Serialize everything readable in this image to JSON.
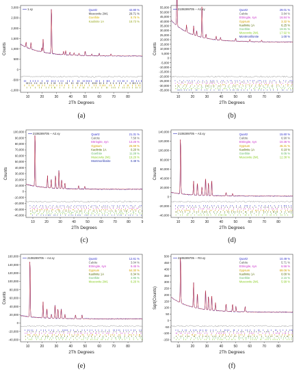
{
  "chart_data": [
    {
      "type": "line",
      "subfigure": "(a)",
      "legend_title": "1.xy",
      "ylabel": "Counts",
      "xlabel": "2Th Degrees",
      "xlim": [
        5,
        90
      ],
      "ylim": [
        -1500,
        3000
      ],
      "yticks": [
        "3,000",
        "2,500",
        "2,000",
        "1,500",
        "1,000",
        "500",
        "0",
        "-500",
        "-1,000"
      ],
      "xticks": [
        "10",
        "20",
        "30",
        "40",
        "50",
        "60",
        "70",
        "80"
      ],
      "legend": [
        {
          "name": "Quartz",
          "value": "42.80 %",
          "color": "#3333cc"
        },
        {
          "name": "Muscovite 2M1",
          "value": "29.71 %",
          "color": "#333333"
        },
        {
          "name": "Goethite",
          "value": "8.76 %",
          "color": "#d4b000"
        },
        {
          "name": "Kaolinite 1A",
          "value": "18.73 %",
          "color": "#99aa22"
        }
      ],
      "baseline": 380,
      "peaks": [
        [
          8.9,
          300
        ],
        [
          12.3,
          350
        ],
        [
          19.9,
          250
        ],
        [
          20.8,
          700
        ],
        [
          26.6,
          2600
        ],
        [
          35.0,
          180
        ],
        [
          36.5,
          220
        ],
        [
          39.5,
          150
        ],
        [
          42.4,
          150
        ],
        [
          45.8,
          120
        ],
        [
          50.1,
          250
        ],
        [
          54.8,
          100
        ],
        [
          59.9,
          140
        ],
        [
          68.1,
          120
        ]
      ],
      "stick_rows": [
        "#3333cc",
        "#333333",
        "#d4b000",
        "#99aa22"
      ]
    },
    {
      "type": "line",
      "subfigure": "(b)",
      "legend_title": "2108289705 -- A1.xy",
      "ylabel": "Counts",
      "xlabel": "2Th Degrees",
      "xlim": [
        5,
        90
      ],
      "ylim": [
        -40000,
        55000
      ],
      "yticks": [
        "55,000",
        "50,000",
        "45,000",
        "40,000",
        "35,000",
        "30,000",
        "25,000",
        "20,000",
        "15,000",
        "10,000",
        "5,000",
        "0",
        "-5,000",
        "-10,000",
        "-15,000",
        "-20,000",
        "-25,000",
        "-30,000",
        "-35,000"
      ],
      "xticks": [
        "10",
        "20",
        "30",
        "40",
        "50",
        "60",
        "70",
        "80"
      ],
      "legend": [
        {
          "name": "Quartz",
          "value": "29.01 %",
          "color": "#3333cc"
        },
        {
          "name": "Calcite",
          "value": "3.84 %",
          "color": "#555555"
        },
        {
          "name": "Ettringite, syn",
          "value": "16.84 %",
          "color": "#cc33cc"
        },
        {
          "name": "Gypsum",
          "value": "3.32 %",
          "color": "#d4a000"
        },
        {
          "name": "Kaolinite 1A",
          "value": "6.25 %",
          "color": "#556b00"
        },
        {
          "name": "Goethite",
          "value": "19.81 %",
          "color": "#66bb66"
        },
        {
          "name": "Muscovite 2M1",
          "value": "17.92 %",
          "color": "#88cc22"
        },
        {
          "name": "Montmorillonite",
          "value": "1.00 %",
          "color": "#2233aa"
        }
      ],
      "baseline": 15000,
      "peaks": [
        [
          9.1,
          48000
        ],
        [
          15.8,
          8000
        ],
        [
          20.8,
          10000
        ],
        [
          22.9,
          6000
        ],
        [
          26.6,
          38000
        ],
        [
          29.4,
          5000
        ],
        [
          36.5,
          4000
        ],
        [
          39.5,
          3000
        ],
        [
          50.1,
          3500
        ],
        [
          60.0,
          2500
        ],
        [
          68.2,
          2000
        ]
      ],
      "stick_rows": [
        "#3333cc",
        "#555555",
        "#cc33cc",
        "#d4a000",
        "#556b00",
        "#66bb66",
        "#88cc22",
        "#2233aa"
      ]
    },
    {
      "type": "line",
      "subfigure": "(c)",
      "legend_title": "2108289705 -- A2.xy",
      "ylabel": "Counts",
      "xlabel": "2Th Degrees",
      "xlim": [
        5,
        90
      ],
      "ylim": [
        -40000,
        100000
      ],
      "yticks": [
        "100,000",
        "90,000",
        "80,000",
        "70,000",
        "60,000",
        "50,000",
        "40,000",
        "30,000",
        "20,000",
        "10,000",
        "0",
        "-10,000",
        "-20,000",
        "-30,000",
        "-40,000"
      ],
      "xticks": [
        "10",
        "20",
        "30",
        "40",
        "50",
        "60",
        "70",
        "80",
        "9"
      ],
      "legend": [
        {
          "name": "Quartz",
          "value": "21.31 %",
          "color": "#3333cc"
        },
        {
          "name": "Calcite",
          "value": "7.58 %",
          "color": "#555555"
        },
        {
          "name": "Ettringite, syn",
          "value": "13.25 %",
          "color": "#cc33cc"
        },
        {
          "name": "Gypsum",
          "value": "26.69 %",
          "color": "#d4a000"
        },
        {
          "name": "Kaolinite 1A",
          "value": "0.20 %",
          "color": "#556b00"
        },
        {
          "name": "Goethite",
          "value": "11.28 %",
          "color": "#66bb66"
        },
        {
          "name": "Muscovite 2M1",
          "value": "19.26 %",
          "color": "#88cc22"
        },
        {
          "name": "Montmorillonite",
          "value": "0.49 %",
          "color": "#2233aa"
        }
      ],
      "baseline": 5000,
      "peaks": [
        [
          11.6,
          92000
        ],
        [
          20.7,
          20000
        ],
        [
          23.4,
          15000
        ],
        [
          26.6,
          22000
        ],
        [
          29.1,
          32000
        ],
        [
          31.1,
          15000
        ],
        [
          33.4,
          10000
        ],
        [
          43.4,
          6000
        ],
        [
          47.9,
          5000
        ]
      ],
      "stick_rows": [
        "#3333cc",
        "#555555",
        "#cc33cc",
        "#d4a000",
        "#556b00",
        "#66bb66",
        "#88cc22",
        "#2233aa"
      ]
    },
    {
      "type": "line",
      "subfigure": "(d)",
      "legend_title": "2108289705 -- A3.xy",
      "ylabel": "Counts",
      "xlabel": "2Th Degrees",
      "xlim": [
        5,
        90
      ],
      "ylim": [
        -40000,
        145000
      ],
      "yticks": [
        "140,000",
        "120,000",
        "100,000",
        "80,000",
        "60,000",
        "40,000",
        "20,000",
        "0",
        "-20,000",
        "-40,000"
      ],
      "xticks": [
        "10",
        "20",
        "30",
        "40",
        "50",
        "60",
        "70",
        "80"
      ],
      "legend": [
        {
          "name": "Quartz",
          "value": "15.60 %",
          "color": "#3333cc"
        },
        {
          "name": "Calcite",
          "value": "6.90 %",
          "color": "#555555"
        },
        {
          "name": "Ettringite, syn",
          "value": "10.36 %",
          "color": "#cc33cc"
        },
        {
          "name": "Gypsum",
          "value": "46.31 %",
          "color": "#d4a000"
        },
        {
          "name": "Kaolinite 1A",
          "value": "0.18 %",
          "color": "#556b00"
        },
        {
          "name": "Goethite",
          "value": "8.05 %",
          "color": "#66bb66"
        },
        {
          "name": "Muscovite 2M1",
          "value": "12.38 %",
          "color": "#88cc22"
        }
      ],
      "baseline": 5000,
      "peaks": [
        [
          11.6,
          130000
        ],
        [
          20.7,
          30000
        ],
        [
          23.4,
          28000
        ],
        [
          26.6,
          20000
        ],
        [
          29.1,
          40000
        ],
        [
          31.1,
          30000
        ],
        [
          33.4,
          35000
        ],
        [
          43.4,
          8000
        ],
        [
          47.9,
          6000
        ]
      ],
      "stick_rows": [
        "#3333cc",
        "#555555",
        "#cc33cc",
        "#d4a000",
        "#556b00",
        "#66bb66",
        "#88cc22"
      ]
    },
    {
      "type": "line",
      "subfigure": "(e)",
      "legend_title": "2108289705 -- A4.xy",
      "ylabel": "Counts",
      "xlabel": "2Th Degrees",
      "xlim": [
        5,
        90
      ],
      "ylim": [
        -50000,
        160000
      ],
      "yticks": [
        "160,000",
        "140,000",
        "120,000",
        "100,000",
        "80,000",
        "60,000",
        "40,000",
        "20,000",
        "0",
        "-20,000",
        "-40,000"
      ],
      "xticks": [
        "10",
        "20",
        "30",
        "40",
        "50",
        "60",
        "70",
        "80"
      ],
      "legend": [
        {
          "name": "Quartz",
          "value": "12.61 %",
          "color": "#3333cc"
        },
        {
          "name": "Calcite",
          "value": "3.04 %",
          "color": "#555555"
        },
        {
          "name": "Ettringite, syn",
          "value": "9.45 %",
          "color": "#cc33cc"
        },
        {
          "name": "Gypsum",
          "value": "64.30 %",
          "color": "#d4a000"
        },
        {
          "name": "Kaolinite 1A",
          "value": "0.34 %",
          "color": "#556b00"
        },
        {
          "name": "Goethite",
          "value": "4.95 %",
          "color": "#66bb66"
        },
        {
          "name": "Muscovite 2M1",
          "value": "6.26 %",
          "color": "#88cc22"
        }
      ],
      "baseline": 5000,
      "peaks": [
        [
          11.6,
          150000
        ],
        [
          20.7,
          40000
        ],
        [
          23.4,
          25000
        ],
        [
          26.6,
          10000
        ],
        [
          29.1,
          35000
        ],
        [
          31.1,
          25000
        ],
        [
          33.4,
          25000
        ],
        [
          36.0,
          10000
        ],
        [
          43.4,
          10000
        ],
        [
          47.9,
          10000
        ]
      ],
      "stick_rows": [
        "#3333cc",
        "#555555",
        "#cc33cc",
        "#d4a000",
        "#556b00",
        "#66bb66",
        "#88cc22"
      ]
    },
    {
      "type": "line",
      "subfigure": "(f)",
      "legend_title": "2108289705 -- R3.xy",
      "ylabel": "Sqrt(Counts)",
      "xlabel": "2Th Degrees",
      "xlim": [
        5,
        90
      ],
      "ylim": [
        -150,
        500
      ],
      "yticks": [
        "500",
        "450",
        "400",
        "350",
        "300",
        "250",
        "200",
        "150",
        "100",
        "50",
        "0",
        "-50",
        "-100",
        "-150"
      ],
      "xticks": [
        "10",
        "20",
        "30",
        "40",
        "50",
        "60",
        "70",
        "80"
      ],
      "legend": [
        {
          "name": "Quartz",
          "value": "10.49 %",
          "color": "#3333cc"
        },
        {
          "name": "Calcite",
          "value": "5.71 %",
          "color": "#555555"
        },
        {
          "name": "Ettringite, syn",
          "value": "6.56 %",
          "color": "#cc33cc"
        },
        {
          "name": "Gypsum",
          "value": "69.06 %",
          "color": "#d4a000"
        },
        {
          "name": "Kaolinite 1A",
          "value": "0.00 %",
          "color": "#556b00"
        },
        {
          "name": "Goethite",
          "value": "2.15 %",
          "color": "#66bb66"
        },
        {
          "name": "Muscovite 2M1",
          "value": "5.99 %",
          "color": "#88cc22"
        }
      ],
      "baseline": 70,
      "peaks": [
        [
          11.6,
          380
        ],
        [
          20.7,
          190
        ],
        [
          23.4,
          120
        ],
        [
          29.1,
          160
        ],
        [
          31.1,
          110
        ],
        [
          33.4,
          120
        ],
        [
          36.0,
          60
        ],
        [
          43.4,
          60
        ],
        [
          47.9,
          60
        ],
        [
          50.3,
          40
        ],
        [
          56.7,
          40
        ]
      ],
      "stick_rows": [
        "#3333cc",
        "#555555",
        "#cc33cc",
        "#d4a000",
        "#556b00",
        "#66bb66",
        "#88cc22"
      ]
    }
  ]
}
